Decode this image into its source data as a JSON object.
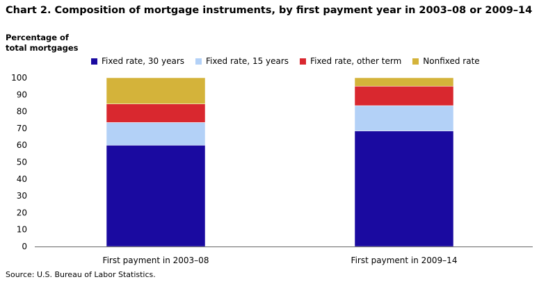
{
  "title": "Chart 2. Composition of mortgage instruments, by first payment year in 2003–08 or 2009–14",
  "source": "Source: U.S. Bureau of Labor Statistics.",
  "colors": {
    "fixed30": "#1a0aa0",
    "fixed15": "#b3d1f7",
    "fixedOther": "#d9282f",
    "nonfixed": "#d4b33a"
  },
  "chart_data": {
    "type": "bar",
    "stacked": true,
    "ylabel": "Percentage of total mortgages",
    "ylim": [
      0,
      100
    ],
    "yticks": [
      0,
      10,
      20,
      30,
      40,
      50,
      60,
      70,
      80,
      90,
      100
    ],
    "grid": false,
    "legend_position": "top",
    "categories": [
      "First payment in 2003–08",
      "First payment in 2009–14"
    ],
    "series": [
      {
        "name": "Fixed rate, 30 years",
        "values": [
          60,
          68.5
        ],
        "color": "#1a0aa0"
      },
      {
        "name": "Fixed rate, 15 years",
        "values": [
          13.5,
          15
        ],
        "color": "#b3d1f7"
      },
      {
        "name": "Fixed rate, other term",
        "values": [
          11,
          11.5
        ],
        "color": "#d9282f"
      },
      {
        "name": "Nonfixed rate",
        "values": [
          15.5,
          5
        ],
        "color": "#d4b33a"
      }
    ]
  }
}
